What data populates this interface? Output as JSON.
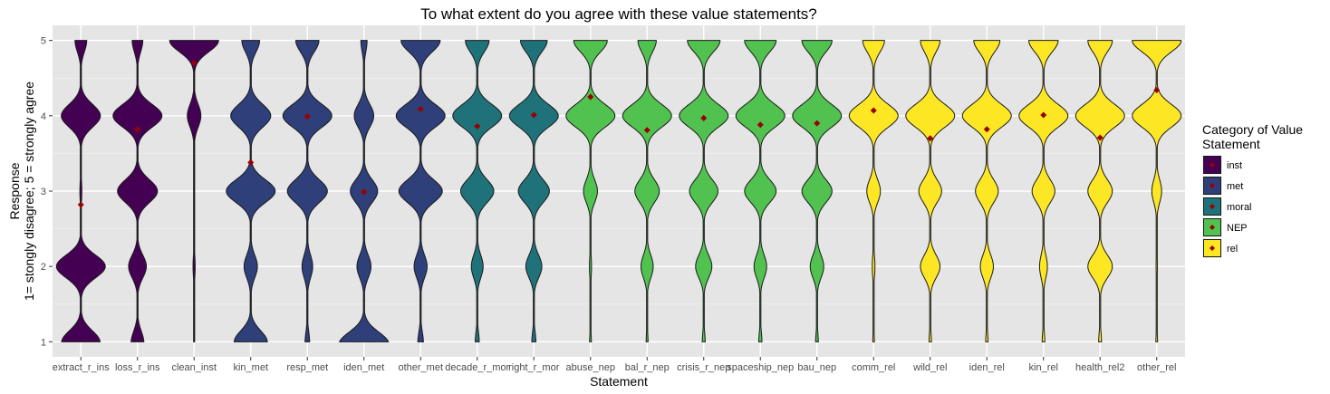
{
  "chart_data": {
    "type": "violin",
    "title": "To what extent do you agree with these value statements?",
    "xlabel": "Statement",
    "ylabel_line1": "Response",
    "ylabel_line2": "1= stongly disagree; 5 = strongly agree",
    "ylim": [
      0.8,
      5.2
    ],
    "y_ticks": [
      1,
      2,
      3,
      4,
      5
    ],
    "grid": true,
    "legend": {
      "title_line1": "Category of Value",
      "title_line2": "Statement",
      "placement": "right",
      "entries": [
        {
          "key": "inst",
          "label": "inst",
          "color": "#440154"
        },
        {
          "key": "met",
          "label": "met",
          "color": "#2E3F7A"
        },
        {
          "key": "moral",
          "label": "moral",
          "color": "#20727A"
        },
        {
          "key": "NEP",
          "label": "NEP",
          "color": "#51C14F"
        },
        {
          "key": "rel",
          "label": "rel",
          "color": "#FDE725"
        }
      ]
    },
    "mean_marker_color": "#990000",
    "statements": [
      {
        "name": "extract_r_ins",
        "category": "inst",
        "mean": 2.82,
        "density": [
          0.05,
          0.55,
          0.75,
          0.03,
          0.6,
          0.18
        ]
      },
      {
        "name": "loss_r_ins",
        "category": "inst",
        "mean": 3.82,
        "density": [
          0.03,
          0.12,
          0.2,
          0.45,
          0.55,
          0.12
        ]
      },
      {
        "name": "clean_inst",
        "category": "inst",
        "mean": 4.7,
        "density": [
          0,
          0.005,
          0.04,
          0.02,
          0.25,
          0.9
        ]
      },
      {
        "name": "kin_met",
        "category": "met",
        "mean": 3.38,
        "density": [
          0.03,
          0.35,
          0.15,
          0.55,
          0.45,
          0.2
        ]
      },
      {
        "name": "resp_met",
        "category": "met",
        "mean": 3.99,
        "density": [
          0.015,
          0.04,
          0.12,
          0.45,
          0.55,
          0.26
        ]
      },
      {
        "name": "iden_met",
        "category": "met",
        "mean": 2.99,
        "density": [
          0.22,
          0.45,
          0.18,
          0.35,
          0.25,
          0.08
        ]
      },
      {
        "name": "other_met",
        "category": "met",
        "mean": 4.09,
        "density": [
          0.015,
          0.04,
          0.12,
          0.4,
          0.45,
          0.36
        ]
      },
      {
        "name": "decade_r_mor",
        "category": "moral",
        "mean": 3.86,
        "density": [
          0.015,
          0.04,
          0.15,
          0.42,
          0.62,
          0.3
        ]
      },
      {
        "name": "right_r_mor",
        "category": "moral",
        "mean": 4.01,
        "density": [
          0.015,
          0.035,
          0.18,
          0.35,
          0.55,
          0.3
        ]
      },
      {
        "name": "abuse_nep",
        "category": "NEP",
        "mean": 4.25,
        "density": [
          0.015,
          0.015,
          0.03,
          0.2,
          0.7,
          0.48
        ]
      },
      {
        "name": "bal_r_nep",
        "category": "NEP",
        "mean": 3.81,
        "density": [
          0.015,
          0.02,
          0.2,
          0.4,
          0.8,
          0.3
        ]
      },
      {
        "name": "crisis_r_nep",
        "category": "NEP",
        "mean": 3.97,
        "density": [
          0.015,
          0.025,
          0.2,
          0.35,
          0.6,
          0.4
        ]
      },
      {
        "name": "spaceship_nep",
        "category": "NEP",
        "mean": 3.88,
        "density": [
          0.015,
          0.03,
          0.16,
          0.4,
          0.62,
          0.4
        ]
      },
      {
        "name": "bau_nep",
        "category": "NEP",
        "mean": 3.9,
        "density": [
          0.015,
          0.025,
          0.18,
          0.4,
          0.65,
          0.4
        ]
      },
      {
        "name": "comm_rel",
        "category": "rel",
        "mean": 4.07,
        "density": [
          0.015,
          0.02,
          0.05,
          0.25,
          0.9,
          0.4
        ]
      },
      {
        "name": "wild_rel",
        "category": "rel",
        "mean": 3.7,
        "density": [
          0.015,
          0.025,
          0.3,
          0.35,
          0.75,
          0.3
        ]
      },
      {
        "name": "iden_rel",
        "category": "rel",
        "mean": 3.82,
        "density": [
          0.015,
          0.025,
          0.2,
          0.35,
          0.75,
          0.4
        ]
      },
      {
        "name": "kin_rel",
        "category": "rel",
        "mean": 4.01,
        "density": [
          0.015,
          0.03,
          0.12,
          0.35,
          0.75,
          0.45
        ]
      },
      {
        "name": "health_rel2",
        "category": "rel",
        "mean": 3.71,
        "density": [
          0.015,
          0.03,
          0.35,
          0.35,
          0.7,
          0.35
        ]
      },
      {
        "name": "other_rel",
        "category": "rel",
        "mean": 4.34,
        "density": [
          0.015,
          0.015,
          0.02,
          0.15,
          0.75,
          0.75
        ]
      }
    ]
  }
}
